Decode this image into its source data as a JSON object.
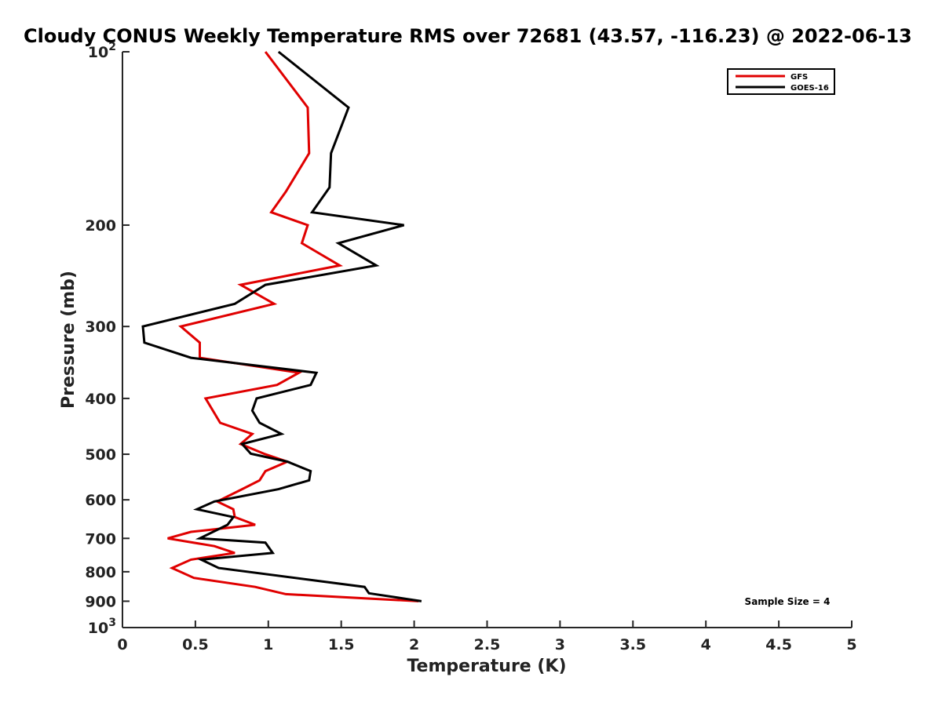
{
  "chart_data": {
    "type": "line",
    "title": "Cloudy CONUS Weekly Temperature RMS over 72681 (43.57, -116.23) @ 2022-06-13",
    "xlabel": "Temperature (K)",
    "ylabel": "Pressure (mb)",
    "xlim": [
      0,
      5
    ],
    "ylim": [
      100,
      1000
    ],
    "y_scale": "log",
    "y_reversed": true,
    "x_ticks": [
      0,
      0.5,
      1,
      1.5,
      2,
      2.5,
      3,
      3.5,
      4,
      4.5,
      5
    ],
    "x_tick_labels": [
      "0",
      "0.5",
      "1",
      "1.5",
      "2",
      "2.5",
      "3",
      "3.5",
      "4",
      "4.5",
      "5"
    ],
    "y_ticks": [
      100,
      200,
      300,
      400,
      500,
      600,
      700,
      800,
      900,
      1000
    ],
    "y_tick_labels": [
      {
        "base": "10",
        "exp": "2"
      },
      {
        "base": "200"
      },
      {
        "base": "300"
      },
      {
        "base": "400"
      },
      {
        "base": "500"
      },
      {
        "base": "600"
      },
      {
        "base": "700"
      },
      {
        "base": "800"
      },
      {
        "base": "900"
      },
      {
        "base": "10",
        "exp": "3"
      }
    ],
    "grid": false,
    "legend_position": "top-right",
    "annotation": "Sample Size = 4",
    "series": [
      {
        "name": "GFS",
        "color": "#e00000",
        "points": [
          [
            0.98,
            100
          ],
          [
            1.27,
            125
          ],
          [
            1.28,
            150
          ],
          [
            1.12,
            175
          ],
          [
            1.02,
            190
          ],
          [
            1.27,
            200
          ],
          [
            1.23,
            215
          ],
          [
            1.49,
            235
          ],
          [
            0.81,
            254
          ],
          [
            1.04,
            274
          ],
          [
            0.4,
            300
          ],
          [
            0.53,
            320
          ],
          [
            0.53,
            340
          ],
          [
            1.21,
            361
          ],
          [
            1.06,
            379
          ],
          [
            0.57,
            400
          ],
          [
            0.67,
            441
          ],
          [
            0.89,
            461
          ],
          [
            0.81,
            480
          ],
          [
            0.97,
            499
          ],
          [
            1.13,
            515
          ],
          [
            0.98,
            535
          ],
          [
            0.94,
            555
          ],
          [
            0.82,
            575
          ],
          [
            0.65,
            604
          ],
          [
            0.76,
            623
          ],
          [
            0.77,
            643
          ],
          [
            0.91,
            663
          ],
          [
            0.47,
            682
          ],
          [
            0.31,
            700
          ],
          [
            0.63,
            722
          ],
          [
            0.77,
            742
          ],
          [
            0.47,
            762
          ],
          [
            0.34,
            788
          ],
          [
            0.49,
            820
          ],
          [
            0.91,
            850
          ],
          [
            1.12,
            875
          ],
          [
            2.03,
            900
          ]
        ]
      },
      {
        "name": "GOES-16",
        "color": "#000000",
        "points": [
          [
            1.07,
            100
          ],
          [
            1.55,
            125
          ],
          [
            1.43,
            150
          ],
          [
            1.42,
            172
          ],
          [
            1.3,
            190
          ],
          [
            1.93,
            200
          ],
          [
            1.48,
            215
          ],
          [
            1.74,
            235
          ],
          [
            0.98,
            254
          ],
          [
            0.77,
            274
          ],
          [
            0.14,
            300
          ],
          [
            0.15,
            320
          ],
          [
            0.47,
            340
          ],
          [
            1.33,
            361
          ],
          [
            1.29,
            379
          ],
          [
            0.92,
            400
          ],
          [
            0.89,
            420
          ],
          [
            0.94,
            441
          ],
          [
            1.09,
            461
          ],
          [
            0.82,
            480
          ],
          [
            0.88,
            499
          ],
          [
            1.13,
            515
          ],
          [
            1.29,
            535
          ],
          [
            1.28,
            555
          ],
          [
            1.07,
            575
          ],
          [
            0.63,
            604
          ],
          [
            0.51,
            623
          ],
          [
            0.76,
            643
          ],
          [
            0.72,
            663
          ],
          [
            0.53,
            700
          ],
          [
            0.98,
            712
          ],
          [
            1.03,
            742
          ],
          [
            0.54,
            762
          ],
          [
            0.66,
            788
          ],
          [
            1.66,
            850
          ],
          [
            1.69,
            872
          ],
          [
            2.05,
            900
          ]
        ]
      }
    ]
  }
}
